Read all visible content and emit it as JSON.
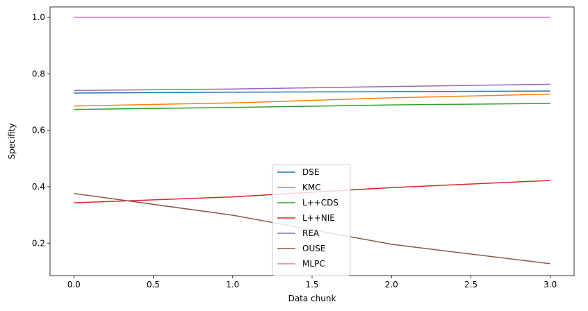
{
  "chart_data": {
    "type": "line",
    "xlabel": "Data chunk",
    "ylabel": "Specifity",
    "x": [
      0,
      1,
      2,
      3
    ],
    "xlim": [
      -0.15,
      3.15
    ],
    "ylim": [
      0.085,
      1.037
    ],
    "xticks": [
      0.0,
      0.5,
      1.0,
      1.5,
      2.0,
      2.5,
      3.0
    ],
    "xtick_labels": [
      "0.0",
      "0.5",
      "1.0",
      "1.5",
      "2.0",
      "2.5",
      "3.0"
    ],
    "yticks": [
      0.2,
      0.4,
      0.6,
      0.8,
      1.0
    ],
    "ytick_labels": [
      "0.2",
      "0.4",
      "0.6",
      "0.8",
      "1.0"
    ],
    "grid": false,
    "legend_position": "lower-center",
    "series": [
      {
        "name": "DSE",
        "color": "#1f77b4",
        "values": [
          0.732,
          0.735,
          0.737,
          0.739
        ]
      },
      {
        "name": "KMC",
        "color": "#ff7f0e",
        "values": [
          0.686,
          0.697,
          0.715,
          0.728
        ]
      },
      {
        "name": "L++CDS",
        "color": "#2ca02c",
        "values": [
          0.674,
          0.681,
          0.69,
          0.695
        ]
      },
      {
        "name": "L++NIE",
        "color": "#d62728",
        "values": [
          0.343,
          0.364,
          0.397,
          0.422
        ]
      },
      {
        "name": "REA",
        "color": "#9467bd",
        "values": [
          0.741,
          0.746,
          0.755,
          0.763
        ]
      },
      {
        "name": "OUSE",
        "color": "#8c564b",
        "values": [
          0.376,
          0.299,
          0.196,
          0.127
        ]
      },
      {
        "name": "MLPC",
        "color": "#e377c2",
        "values": [
          1.0,
          1.0,
          1.0,
          1.0
        ]
      }
    ]
  }
}
